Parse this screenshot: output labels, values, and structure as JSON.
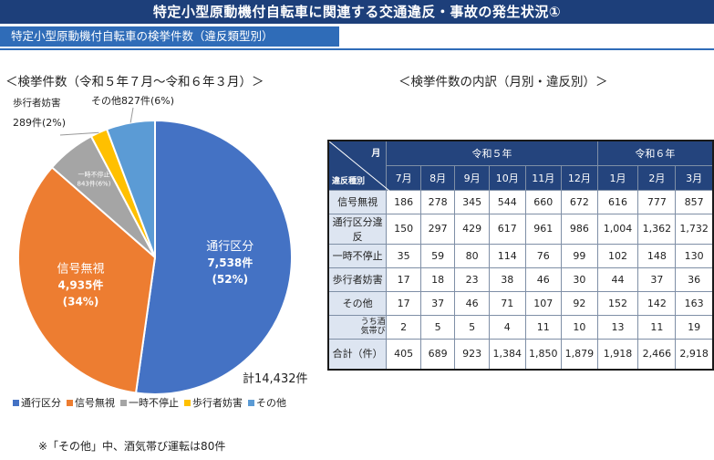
{
  "header": {
    "title": "特定小型原動機付自転車に関連する交通違反・事故の発生状況①",
    "subtitle": "特定小型原動機付自転車の検挙件数（違反類型別）"
  },
  "pie_section": {
    "title": "＜検挙件数（令和５年７月～令和６年３月）＞",
    "total": "計14,432件"
  },
  "table_section": {
    "title": "＜検挙件数の内訳（月別・違反別）＞"
  },
  "footnote": "※「その他」中、酒気帯び運転は80件",
  "colors": {
    "navy": "#1d3f7a",
    "blue": "#4472c4",
    "orange": "#ed7d31",
    "gray": "#a5a5a5",
    "yellow": "#ffc000",
    "lightblue": "#5b9bd5"
  },
  "chart_data": [
    {
      "type": "pie",
      "series": [
        {
          "name": "通行区分",
          "value": 7538,
          "label_count": "7,538件",
          "label_pct": "(52%)",
          "color": "#4472c4"
        },
        {
          "name": "信号無視",
          "value": 4935,
          "label_count": "4,935件",
          "label_pct": "(34%)",
          "color": "#ed7d31"
        },
        {
          "name": "一時不停止",
          "value": 843,
          "label_count": "843件(6%)",
          "label_pct": "",
          "color": "#a5a5a5"
        },
        {
          "name": "歩行者妨害",
          "value": 289,
          "label_count": "289件(2%)",
          "label_pct": "",
          "color": "#ffc000"
        },
        {
          "name": "その他",
          "value": 827,
          "label_count": "その他827件(6%)",
          "label_pct": "",
          "color": "#5b9bd5"
        }
      ],
      "outside_labels": {
        "pedestrian_name": "歩行者妨害",
        "pedestrian_count": "289件(2%)",
        "other": "その他827件(6%)"
      }
    },
    {
      "type": "table",
      "corner_top": "月",
      "corner_bottom": "違反種別",
      "year_groups": [
        {
          "label": "令和５年",
          "span": 6
        },
        {
          "label": "令和６年",
          "span": 3
        }
      ],
      "months": [
        "7月",
        "8月",
        "9月",
        "10月",
        "11月",
        "12月",
        "1月",
        "2月",
        "3月"
      ],
      "rows": [
        {
          "label": "信号無視",
          "values": [
            "186",
            "278",
            "345",
            "544",
            "660",
            "672",
            "616",
            "777",
            "857"
          ]
        },
        {
          "label": "通行区分違反",
          "values": [
            "150",
            "297",
            "429",
            "617",
            "961",
            "986",
            "1,004",
            "1,362",
            "1,732"
          ]
        },
        {
          "label": "一時不停止",
          "values": [
            "35",
            "59",
            "80",
            "114",
            "76",
            "99",
            "102",
            "148",
            "130"
          ]
        },
        {
          "label": "歩行者妨害",
          "values": [
            "17",
            "18",
            "23",
            "38",
            "46",
            "30",
            "44",
            "37",
            "36"
          ]
        },
        {
          "label": "その他",
          "values": [
            "17",
            "37",
            "46",
            "71",
            "107",
            "92",
            "152",
            "142",
            "163"
          ]
        },
        {
          "label": "うち酒気帯び",
          "values": [
            "2",
            "5",
            "5",
            "4",
            "11",
            "10",
            "13",
            "11",
            "19"
          ]
        }
      ],
      "total_row": {
        "label": "合計（件）",
        "values": [
          "405",
          "689",
          "923",
          "1,384",
          "1,850",
          "1,879",
          "1,918",
          "2,466",
          "2,918"
        ]
      }
    }
  ]
}
